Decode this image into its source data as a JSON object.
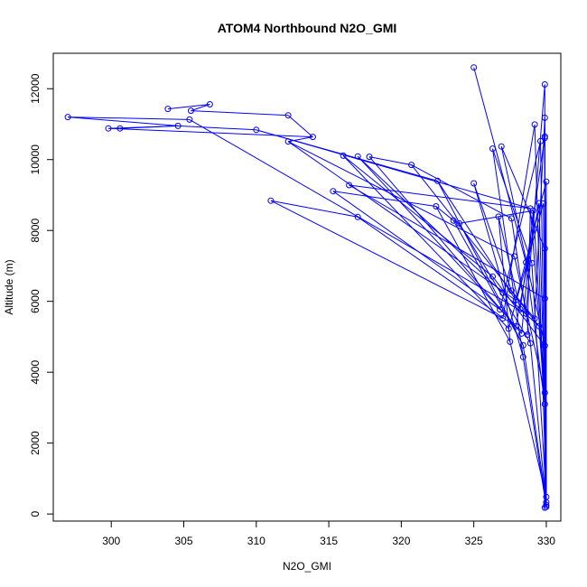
{
  "chart_data": {
    "type": "line",
    "title": "ATOM4 Northbound N2O_GMI",
    "xlabel": "N2O_GMI",
    "ylabel": "Altitude (m)",
    "xlim": [
      296,
      331
    ],
    "ylim": [
      -200,
      13000
    ],
    "xticks": [
      300,
      305,
      310,
      315,
      320,
      325,
      330
    ],
    "yticks": [
      0,
      2000,
      4000,
      6000,
      8000,
      10000,
      12000
    ],
    "grid": false,
    "color": "#0000ff",
    "points": [
      [
        297.0,
        11200
      ],
      [
        304.6,
        10950
      ],
      [
        299.8,
        10880
      ],
      [
        300.6,
        10880
      ],
      [
        310.0,
        10840
      ],
      [
        303.9,
        11430
      ],
      [
        306.8,
        11560
      ],
      [
        305.5,
        11380
      ],
      [
        312.2,
        11250
      ],
      [
        313.9,
        10640
      ],
      [
        312.2,
        10510
      ],
      [
        305.4,
        11130
      ],
      [
        316.0,
        10110
      ],
      [
        317.0,
        10090
      ],
      [
        317.8,
        10080
      ],
      [
        320.7,
        9850
      ],
      [
        322.5,
        9400
      ],
      [
        316.4,
        9280
      ],
      [
        315.3,
        9110
      ],
      [
        311.0,
        8840
      ],
      [
        317.0,
        8380
      ],
      [
        322.4,
        8680
      ],
      [
        323.6,
        8280
      ],
      [
        324.0,
        8200
      ],
      [
        325.0,
        9330
      ],
      [
        325.0,
        12600
      ],
      [
        326.3,
        10310
      ],
      [
        326.9,
        10370
      ],
      [
        326.7,
        8390
      ],
      [
        327.6,
        8340
      ],
      [
        328.9,
        8620
      ],
      [
        329.1,
        8560
      ],
      [
        329.5,
        8770
      ],
      [
        329.8,
        8760
      ],
      [
        329.2,
        10990
      ],
      [
        329.6,
        10520
      ],
      [
        329.9,
        10610
      ],
      [
        329.9,
        11180
      ],
      [
        329.9,
        12120
      ],
      [
        329.9,
        10650
      ],
      [
        330.0,
        9380
      ],
      [
        327.8,
        7270
      ],
      [
        328.6,
        7100
      ],
      [
        329.0,
        7080
      ],
      [
        329.9,
        7490
      ],
      [
        326.3,
        6700
      ],
      [
        327.0,
        6240
      ],
      [
        327.6,
        6300
      ],
      [
        327.9,
        6030
      ],
      [
        328.2,
        5780
      ],
      [
        328.6,
        5650
      ],
      [
        329.2,
        5510
      ],
      [
        329.9,
        6080
      ],
      [
        326.8,
        5770
      ],
      [
        327.0,
        5520
      ],
      [
        327.4,
        5230
      ],
      [
        327.9,
        5300
      ],
      [
        328.3,
        5090
      ],
      [
        328.7,
        5060
      ],
      [
        329.5,
        5300
      ],
      [
        327.5,
        4860
      ],
      [
        328.4,
        4760
      ],
      [
        328.9,
        4820
      ],
      [
        328.4,
        4430
      ],
      [
        329.9,
        4750
      ],
      [
        329.9,
        3420
      ],
      [
        329.9,
        3100
      ],
      [
        330.0,
        480
      ],
      [
        330.0,
        330
      ],
      [
        330.0,
        250
      ],
      [
        330.0,
        200
      ],
      [
        329.9,
        180
      ]
    ],
    "segments": [
      [
        0,
        1
      ],
      [
        1,
        2
      ],
      [
        1,
        3
      ],
      [
        1,
        4
      ],
      [
        5,
        6
      ],
      [
        6,
        7
      ],
      [
        7,
        8
      ],
      [
        8,
        9
      ],
      [
        9,
        10
      ],
      [
        0,
        11
      ],
      [
        4,
        16
      ],
      [
        10,
        41
      ],
      [
        12,
        45
      ],
      [
        13,
        46
      ],
      [
        14,
        15
      ],
      [
        15,
        29
      ],
      [
        16,
        48
      ],
      [
        17,
        30
      ],
      [
        18,
        21
      ],
      [
        19,
        20
      ],
      [
        21,
        22
      ],
      [
        22,
        23
      ],
      [
        23,
        31
      ],
      [
        24,
        47
      ],
      [
        25,
        42
      ],
      [
        26,
        43
      ],
      [
        27,
        44
      ],
      [
        28,
        49
      ],
      [
        30,
        65
      ],
      [
        32,
        66
      ],
      [
        33,
        70
      ],
      [
        34,
        67
      ],
      [
        35,
        68
      ],
      [
        36,
        69
      ],
      [
        37,
        70
      ],
      [
        38,
        71
      ],
      [
        39,
        67
      ],
      [
        40,
        68
      ],
      [
        11,
        50
      ],
      [
        17,
        52
      ],
      [
        18,
        53
      ],
      [
        19,
        54
      ],
      [
        12,
        55
      ],
      [
        13,
        56
      ],
      [
        14,
        57
      ],
      [
        20,
        58
      ],
      [
        21,
        60
      ],
      [
        22,
        61
      ],
      [
        23,
        62
      ],
      [
        24,
        63
      ],
      [
        45,
        64
      ],
      [
        46,
        59
      ],
      [
        47,
        51
      ],
      [
        48,
        40
      ],
      [
        49,
        39
      ],
      [
        50,
        38
      ],
      [
        51,
        37
      ],
      [
        52,
        36
      ],
      [
        53,
        35
      ],
      [
        54,
        34
      ],
      [
        55,
        33
      ],
      [
        56,
        32
      ],
      [
        57,
        31
      ],
      [
        58,
        30
      ],
      [
        59,
        66
      ],
      [
        60,
        67
      ],
      [
        61,
        68
      ],
      [
        62,
        69
      ],
      [
        63,
        70
      ],
      [
        64,
        71
      ],
      [
        41,
        65
      ],
      [
        42,
        66
      ],
      [
        43,
        67
      ],
      [
        44,
        68
      ],
      [
        4,
        30
      ],
      [
        10,
        48
      ],
      [
        15,
        59
      ],
      [
        16,
        61
      ],
      [
        26,
        63
      ],
      [
        27,
        64
      ],
      [
        28,
        60
      ],
      [
        29,
        62
      ],
      [
        31,
        65
      ],
      [
        2,
        9
      ]
    ]
  }
}
